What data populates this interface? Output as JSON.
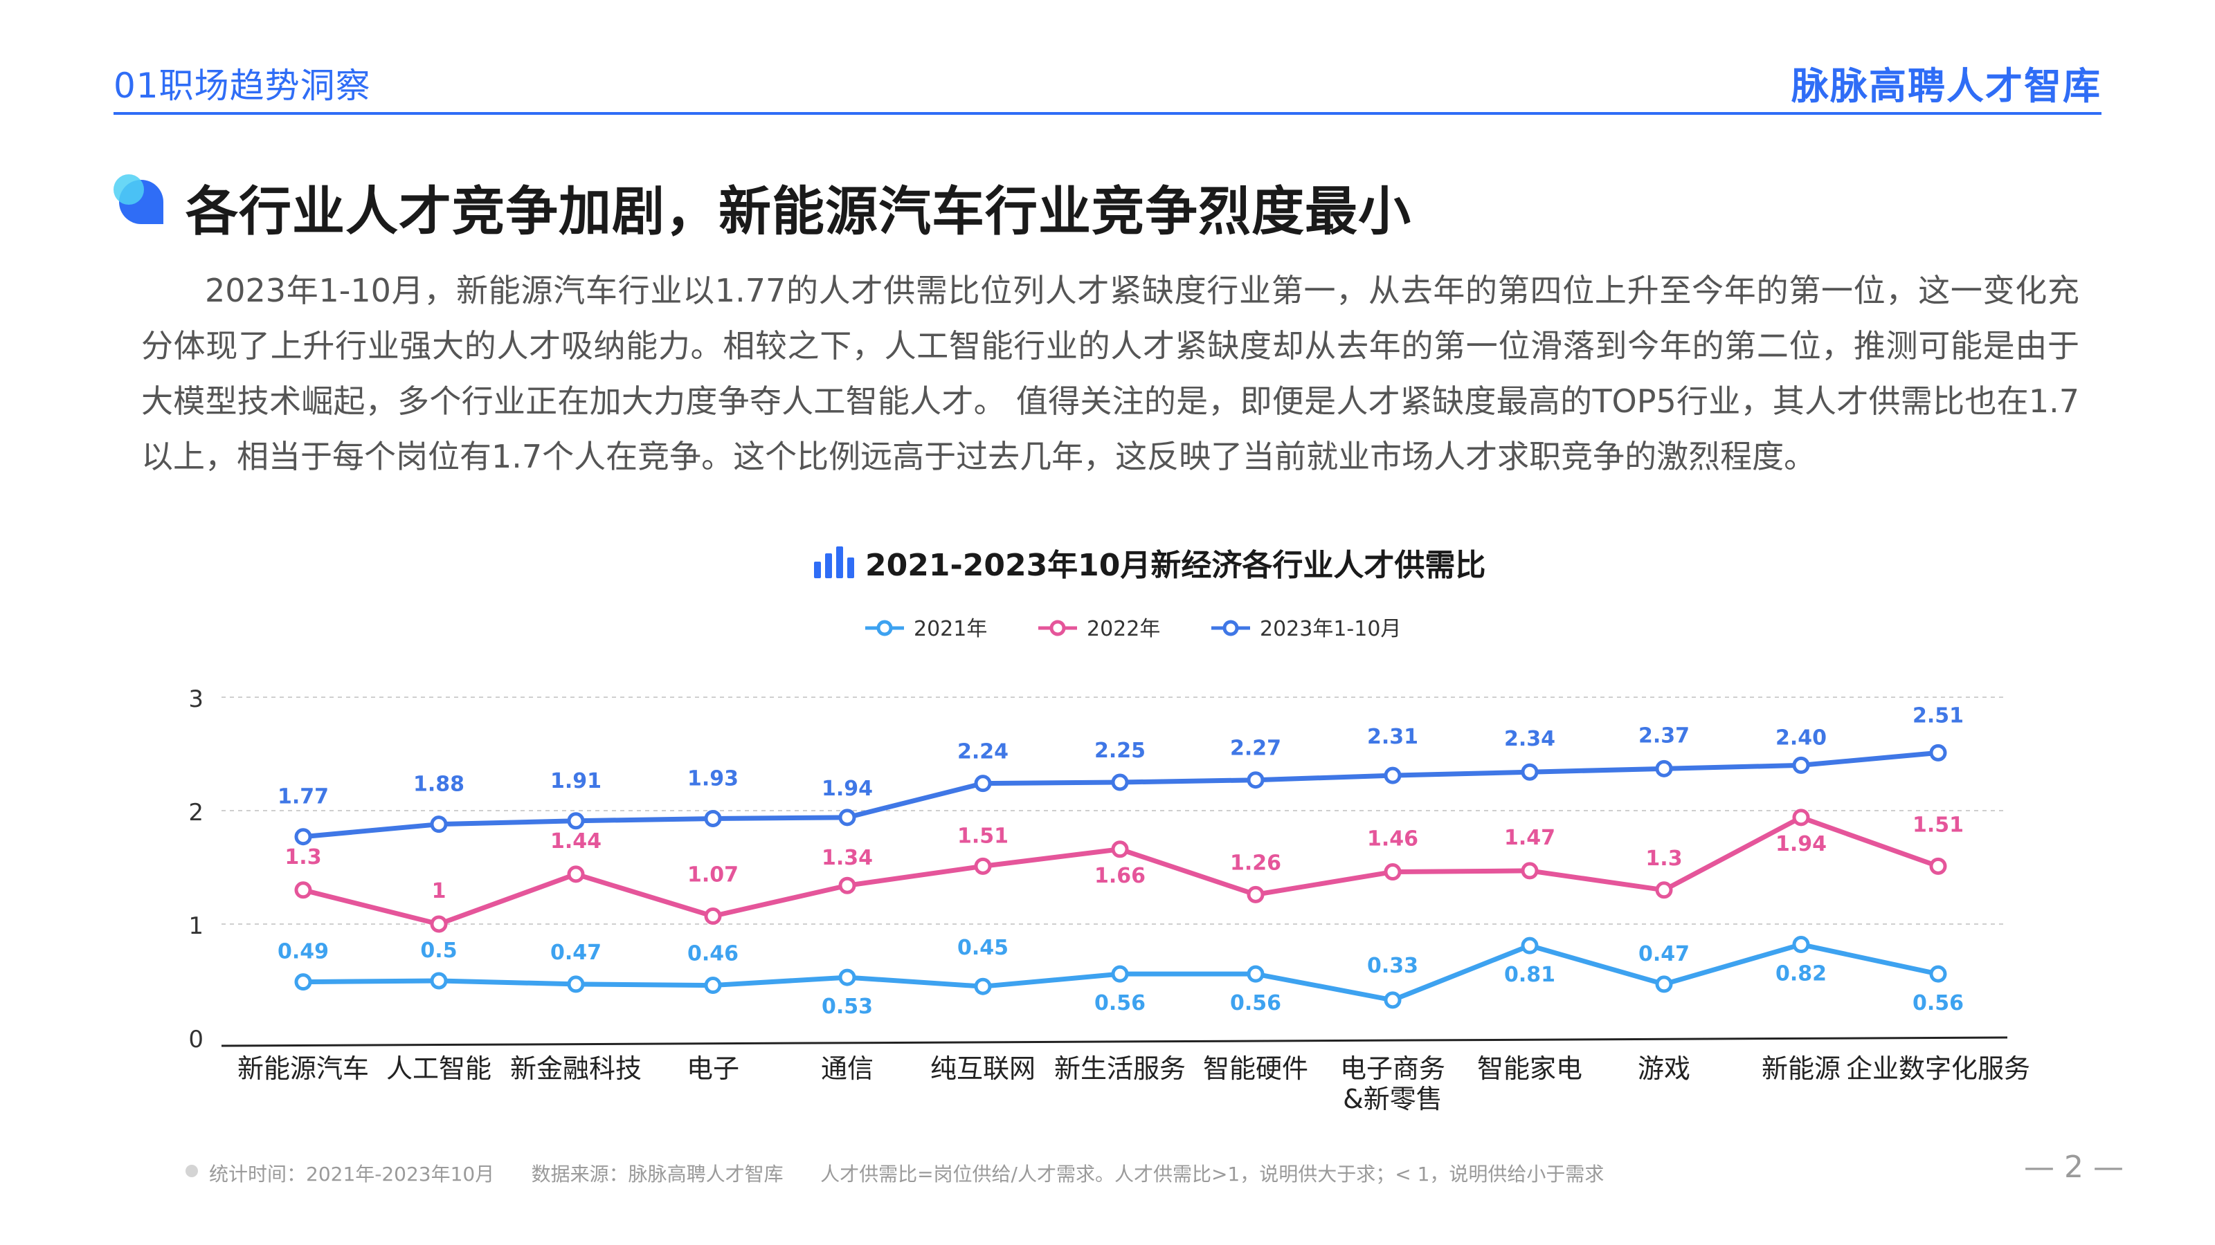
{
  "header": {
    "section": "01职场趋势洞察",
    "brand": "脉脉高聘人才智库"
  },
  "page_title": "各行业人才竞争加剧，新能源汽车行业竞争烈度最小",
  "paragraph": "2023年1-10月，新能源汽车行业以1.77的人才供需比位列人才紧缺度行业第一，从去年的第四位上升至今年的第一位，这一变化充分体现了上升行业强大的人才吸纳能力。相较之下，人工智能行业的人才紧缺度却从去年的第一位滑落到今年的第二位，推测可能是由于大模型技术崛起，多个行业正在加大力度争夺人工智能人才。 值得关注的是，即便是人才紧缺度最高的TOP5行业，其人才供需比也在1.7以上，相当于每个岗位有1.7个人在竞争。这个比例远高于过去几年，这反映了当前就业市场人才求职竞争的激烈程度。",
  "chart_data": {
    "type": "line",
    "title": "2021-2023年10月新经济各行业人才供需比",
    "categories": [
      "新能源汽车",
      "人工智能",
      "新金融科技",
      "电子",
      "通信",
      "纯互联网",
      "新生活服务",
      "智能硬件",
      "电子商务\n&新零售",
      "智能家电",
      "游戏",
      "新能源",
      "企业数字化服务"
    ],
    "ylim": [
      0,
      3
    ],
    "yticks": [
      "0",
      "1",
      "2",
      "3"
    ],
    "grid": true,
    "legend_position": "top",
    "series": [
      {
        "name": "2021年",
        "color": "#3da2f0",
        "values": [
          0.49,
          0.5,
          0.47,
          0.46,
          0.53,
          0.45,
          0.56,
          0.56,
          0.33,
          0.81,
          0.47,
          0.82,
          0.56
        ],
        "labels": [
          "0.49",
          "0.5",
          "0.47",
          "0.46",
          "0.53",
          "0.45",
          "0.56",
          "0.56",
          "0.33",
          "0.81",
          "0.47",
          "0.82",
          "0.56"
        ]
      },
      {
        "name": "2022年",
        "color": "#e5559a",
        "values": [
          1.3,
          1,
          1.44,
          1.07,
          1.34,
          1.51,
          1.66,
          1.26,
          1.46,
          1.47,
          1.3,
          1.94,
          1.51
        ],
        "labels": [
          "1.3",
          "1",
          "1.44",
          "1.07",
          "1.34",
          "1.51",
          "1.66",
          "1.26",
          "1.46",
          "1.47",
          "1.3",
          "1.94",
          "1.51"
        ]
      },
      {
        "name": "2023年1-10月",
        "color": "#3f77e6",
        "values": [
          1.77,
          1.88,
          1.91,
          1.93,
          1.94,
          2.24,
          2.25,
          2.27,
          2.31,
          2.34,
          2.37,
          2.4,
          2.51
        ],
        "labels": [
          "1.77",
          "1.88",
          "1.91",
          "1.93",
          "1.94",
          "2.24",
          "2.25",
          "2.27",
          "2.31",
          "2.34",
          "2.37",
          "2.40",
          "2.51"
        ]
      }
    ]
  },
  "footer": {
    "stat_time": "统计时间：2021年-2023年10月",
    "source": "数据来源：脉脉高聘人才智库",
    "note": "人才供需比=岗位供给/人才需求。人才供需比>1，说明供大于求；< 1，说明供给小于需求"
  },
  "page_number": "— 2 —"
}
